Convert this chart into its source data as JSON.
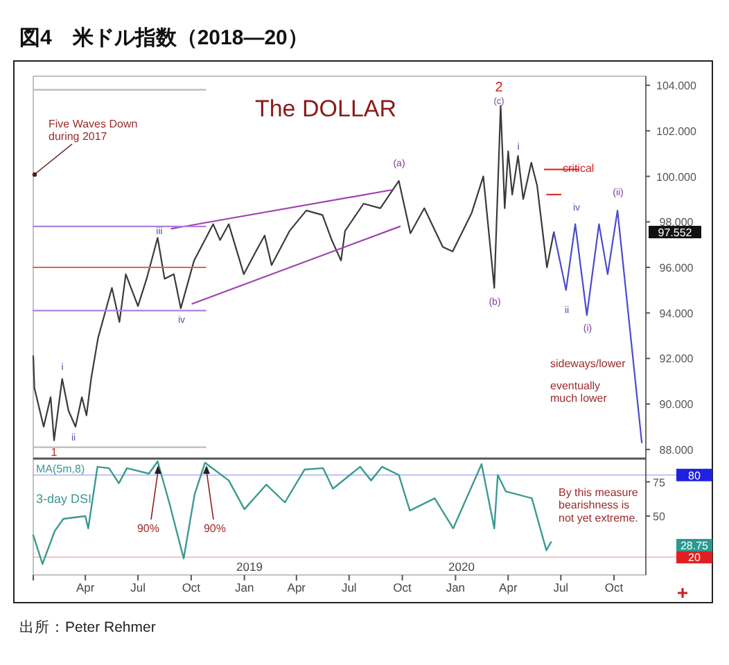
{
  "chart_data": [
    {
      "type": "line",
      "title": "図4　米ドル指数（2018—20）",
      "subtitle": "The DOLLAR",
      "xlim": [
        "2018-01-01",
        "2020-11-25"
      ],
      "ylim": [
        87.6,
        104.4
      ],
      "yticks": [
        {
          "value": 88,
          "label": "88.000"
        },
        {
          "value": 90,
          "label": "90.000"
        },
        {
          "value": 92,
          "label": "92.000"
        },
        {
          "value": 94,
          "label": "94.000"
        },
        {
          "value": 96,
          "label": "96.000"
        },
        {
          "value": 98,
          "label": "98.000"
        },
        {
          "value": 100,
          "label": "100.000"
        },
        {
          "value": 102,
          "label": "102.000"
        },
        {
          "value": 104,
          "label": "104.000"
        }
      ],
      "tick_labels": "y",
      "series": [
        {
          "color": "#3a3a3a",
          "x": [
            "2018-01-01",
            "2018-01-03",
            "2018-01-19",
            "2018-01-31",
            "2018-02-06",
            "2018-02-20",
            "2018-03-03",
            "2018-03-15",
            "2018-03-26",
            "2018-04-03",
            "2018-04-11",
            "2018-04-23",
            "2018-05-17",
            "2018-05-30",
            "2018-06-10",
            "2018-07-01",
            "2018-07-16",
            "2018-08-04",
            "2018-08-16",
            "2018-09-01",
            "2018-09-13",
            "2018-10-06",
            "2018-11-08",
            "2018-11-20",
            "2018-12-05",
            "2018-12-31",
            "2019-01-25",
            "2019-02-05",
            "2019-02-17",
            "2019-03-20",
            "2019-04-18",
            "2019-05-16",
            "2019-06-01",
            "2019-06-17",
            "2019-06-24",
            "2019-07-26",
            "2019-08-24",
            "2019-09-25",
            "2019-10-15",
            "2019-11-08",
            "2019-12-10",
            "2019-12-27",
            "2020-01-29",
            "2020-02-18",
            "2020-03-08",
            "2020-03-19",
            "2020-03-26",
            "2020-04-01",
            "2020-04-08",
            "2020-04-18",
            "2020-04-27",
            "2020-05-11",
            "2020-05-21",
            "2020-06-07",
            "2020-06-19"
          ],
          "values": [
            92.1,
            90.7,
            89.0,
            90.3,
            88.4,
            91.1,
            89.7,
            89.0,
            90.3,
            89.5,
            91.1,
            92.9,
            95.1,
            93.6,
            95.7,
            94.3,
            95.5,
            97.3,
            95.5,
            95.7,
            94.2,
            96.3,
            97.9,
            97.2,
            97.9,
            95.7,
            96.9,
            97.4,
            96.1,
            97.6,
            98.5,
            98.3,
            97.2,
            96.3,
            97.6,
            98.8,
            98.6,
            99.8,
            97.5,
            98.6,
            96.9,
            96.7,
            98.4,
            100.0,
            95.1,
            103.1,
            98.6,
            101.1,
            99.2,
            100.9,
            99.0,
            100.6,
            99.6,
            96.0,
            97.55
          ]
        },
        {
          "color": "#4a4ad0",
          "x": [
            "2020-06-19",
            "2020-07-10",
            "2020-07-26",
            "2020-08-15",
            "2020-09-05",
            "2020-09-20",
            "2020-10-07",
            "2020-11-18"
          ],
          "values": [
            97.55,
            95.0,
            97.9,
            93.9,
            97.9,
            95.7,
            98.5,
            88.3
          ]
        },
        {
          "color": "#a040b0",
          "x": [
            "2018-08-28",
            "2019-09-12"
          ],
          "values": [
            97.7,
            99.4
          ]
        },
        {
          "color": "#a040b0",
          "x": [
            "2018-10-03",
            "2019-09-27"
          ],
          "values": [
            94.4,
            97.8
          ]
        },
        {
          "color": "#bbbbbb",
          "x": [
            "2018-01-01",
            "2018-10-26"
          ],
          "values": [
            103.8,
            103.8
          ]
        },
        {
          "color": "#b080e0",
          "x": [
            "2018-01-01",
            "2018-10-26"
          ],
          "values": [
            97.8,
            97.8
          ]
        },
        {
          "color": "#e06060",
          "x": [
            "2018-01-01",
            "2018-10-26"
          ],
          "values": [
            96.0,
            96.0
          ]
        },
        {
          "color": "#b080e0",
          "x": [
            "2018-01-01",
            "2018-10-26"
          ],
          "values": [
            94.1,
            94.1
          ]
        },
        {
          "color": "#bbbbbb",
          "x": [
            "2018-01-01",
            "2018-10-26"
          ],
          "values": [
            88.1,
            88.1
          ]
        },
        {
          "color": "#e03030",
          "x": [
            "2020-06-03",
            "2020-08-01"
          ],
          "values": [
            100.3,
            100.3
          ]
        },
        {
          "color": "#e03030",
          "x": [
            "2020-06-07",
            "2020-07-01"
          ],
          "values": [
            99.2,
            99.2
          ]
        }
      ],
      "annotations": [
        "Five Waves Down\nduring 2017",
        "1",
        "i",
        "ii",
        "iii",
        "iv",
        "(a)",
        "2",
        "(c)",
        "(b)",
        "i",
        "ii",
        "iv",
        "(i)",
        "(ii)",
        "critical",
        "sideways/lower",
        "eventually\nmuch lower",
        "97.552"
      ]
    },
    {
      "type": "line",
      "xlim": [
        "2018-01-01",
        "2020-11-25"
      ],
      "ylim": [
        7,
        92
      ],
      "yticks": [
        50,
        75
      ],
      "xticks": [
        {
          "value": "2018-01-01",
          "label": null
        },
        {
          "value": "2018-04-01",
          "label": "Apr"
        },
        {
          "value": "2018-07-01",
          "label": "Jul"
        },
        {
          "value": "2018-10-01",
          "label": "Oct"
        },
        {
          "value": "2019-01-01",
          "label": "Jan"
        },
        {
          "value": "2019-04-01",
          "label": "Apr"
        },
        {
          "value": "2019-07-01",
          "label": "Jul"
        },
        {
          "value": "2019-10-01",
          "label": "Oct"
        },
        {
          "value": "2020-01-01",
          "label": "Jan"
        },
        {
          "value": "2020-04-01",
          "label": "Apr"
        },
        {
          "value": "2020-07-01",
          "label": "Jul"
        },
        {
          "value": "2020-10-01",
          "label": "Oct"
        }
      ],
      "series": [
        {
          "name": "3-day DSI",
          "color": "#3a9a90",
          "x": [
            "2018-01-01",
            "2018-01-17",
            "2018-02-07",
            "2018-02-22",
            "2018-04-01",
            "2018-04-06",
            "2018-04-22",
            "2018-05-12",
            "2018-05-29",
            "2018-06-12",
            "2018-07-20",
            "2018-08-04",
            "2018-08-24",
            "2018-09-18",
            "2018-10-07",
            "2018-10-25",
            "2018-12-05",
            "2019-01-01",
            "2019-02-08",
            "2019-03-12",
            "2019-04-15",
            "2019-05-17",
            "2019-06-03",
            "2019-07-20",
            "2019-08-08",
            "2019-08-27",
            "2019-09-25",
            "2019-10-14",
            "2019-11-26",
            "2019-12-28",
            "2020-02-15",
            "2020-03-08",
            "2020-03-14",
            "2020-03-28",
            "2020-05-12",
            "2020-06-06",
            "2020-06-14"
          ],
          "values": [
            36,
            15,
            39,
            48,
            50,
            41,
            86,
            85,
            74,
            85,
            81,
            90,
            60,
            19,
            66,
            89,
            76,
            55,
            73,
            60,
            84,
            85,
            70,
            86,
            76,
            86,
            80,
            54,
            63,
            41,
            88,
            41,
            80,
            68,
            63,
            25,
            31
          ]
        }
      ],
      "ref_lines": [
        {
          "axis": "y",
          "value": 80,
          "label": "80",
          "color": "#2020e0"
        },
        {
          "axis": "y",
          "value": 20,
          "label": "20",
          "color": "#e02020"
        }
      ],
      "annotations": [
        "MA(5m,8)",
        "90%",
        "90%",
        "By this measure\nbearishness is\nnot yet extreme.",
        "2019",
        "2020",
        "28.75",
        "出所：Peter Rehmer"
      ]
    }
  ]
}
